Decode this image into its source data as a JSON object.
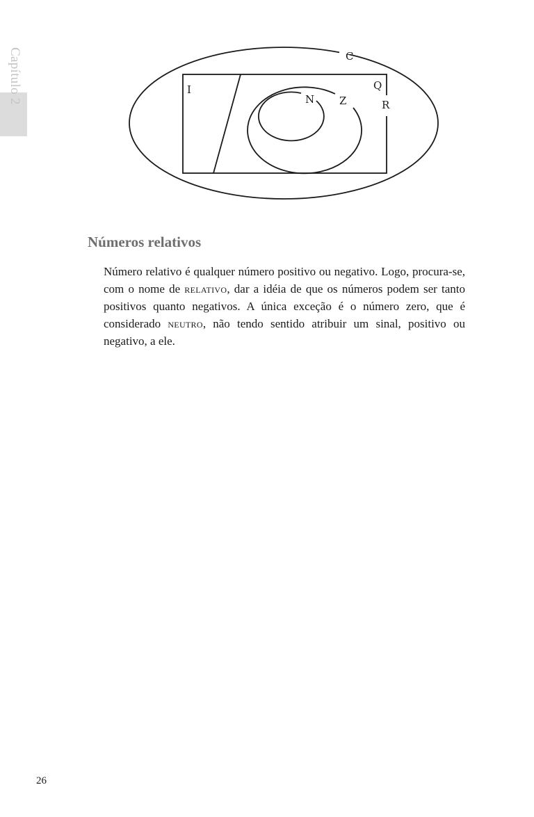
{
  "sidebar": {
    "chapter_label": "Capítulo 2"
  },
  "diagram": {
    "labels": {
      "complex": "C",
      "irrational": "I",
      "rational": "Q",
      "real": "R",
      "natural": "N",
      "integer": "Z"
    }
  },
  "section": {
    "title": "Números relativos",
    "paragraph": {
      "part1": "Número relativo é qualquer número positivo ou negativo. Logo, procura-se, com o nome de ",
      "term1": "relativo",
      "part2": ", dar a idéia de que os números podem ser tanto positivos quanto negativos. A única exceção é o número zero, que é considerado ",
      "term2": "neutro",
      "part3": ", não tendo sentido atribuir um sinal, positivo ou negativo, a ele."
    }
  },
  "footer": {
    "page_number": "26"
  }
}
